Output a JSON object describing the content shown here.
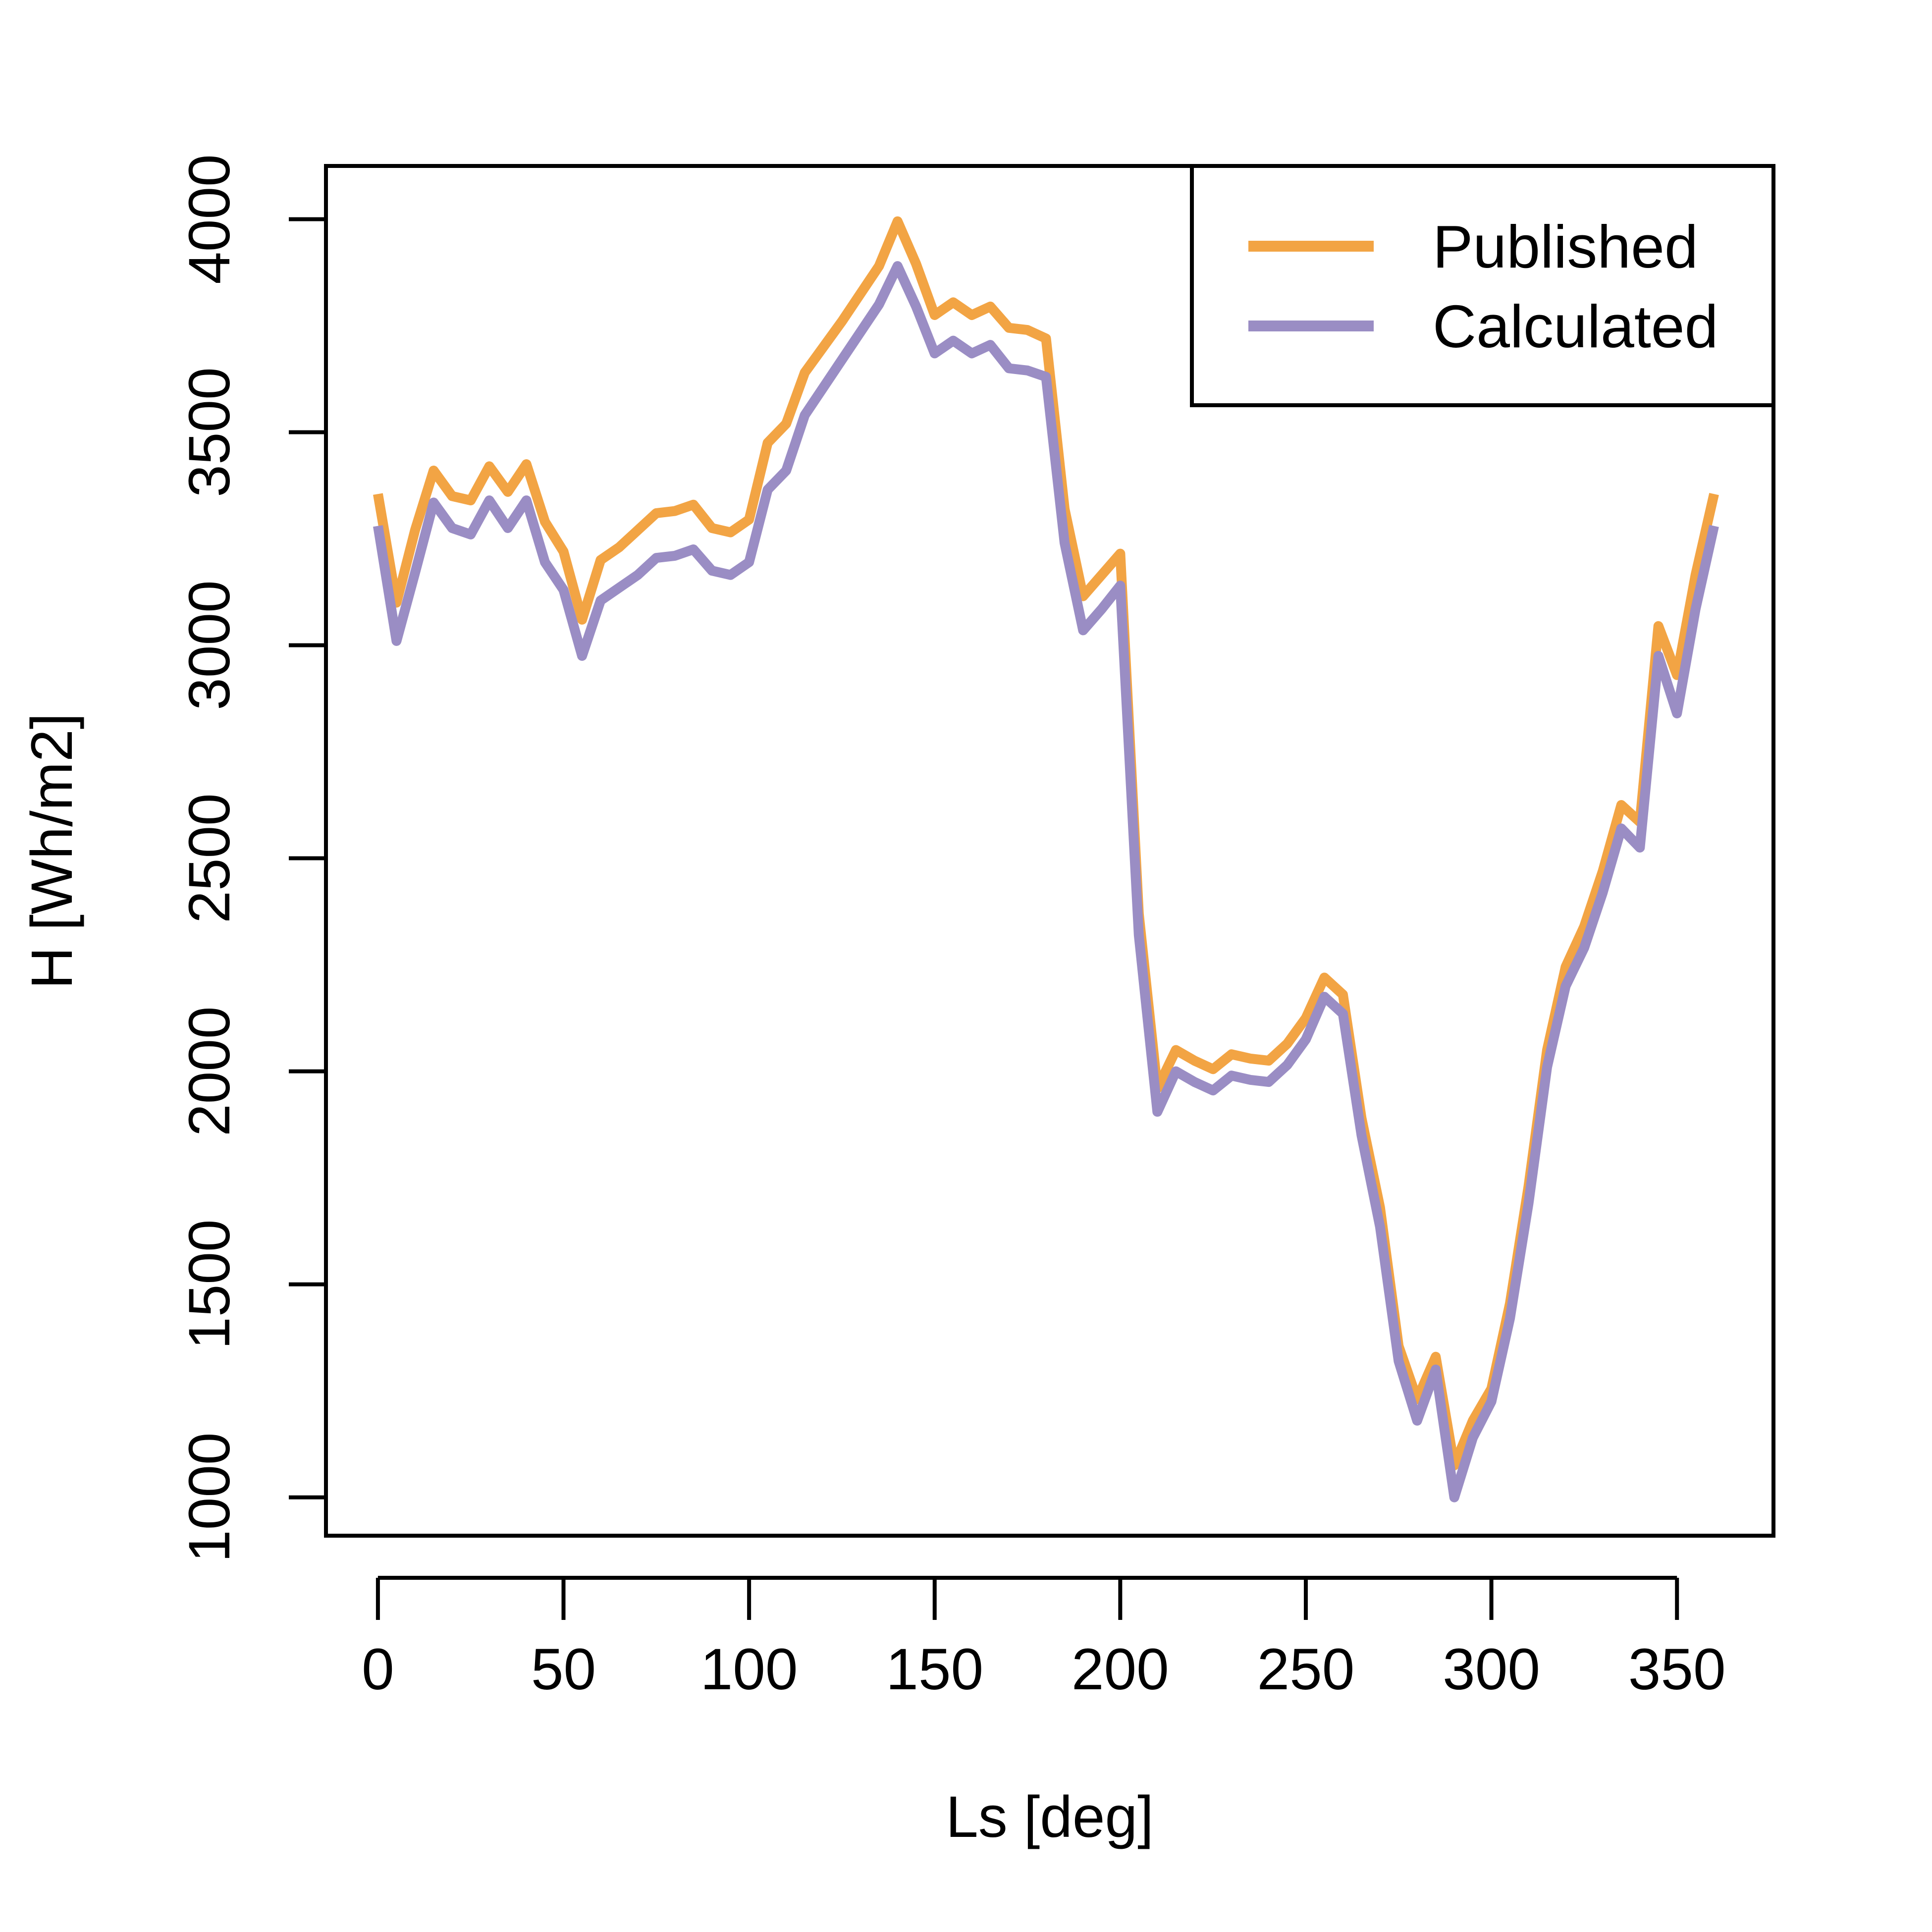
{
  "chart_data": {
    "type": "line",
    "xlabel": "Ls [deg]",
    "ylabel": "H [Wh/m2]",
    "xlim": [
      -14,
      376
    ],
    "ylim": [
      910,
      4125
    ],
    "xticks": [
      0,
      50,
      100,
      150,
      200,
      250,
      300,
      350
    ],
    "yticks": [
      1000,
      1500,
      2000,
      2500,
      3000,
      3500,
      4000
    ],
    "xtick_labels": [
      "0",
      "50",
      "100",
      "150",
      "200",
      "250",
      "300",
      "350"
    ],
    "ytick_labels": [
      "1000",
      "1500",
      "2000",
      "2500",
      "3000",
      "3500",
      "4000"
    ],
    "grid": false,
    "legend_position": "top-right",
    "x": [
      0,
      5,
      10,
      15,
      20,
      25,
      30,
      35,
      40,
      45,
      50,
      55,
      60,
      65,
      70,
      75,
      80,
      85,
      90,
      95,
      100,
      105,
      110,
      115,
      120,
      125,
      130,
      135,
      140,
      145,
      150,
      155,
      160,
      165,
      170,
      175,
      180,
      185,
      190,
      195,
      200,
      205,
      210,
      215,
      220,
      225,
      230,
      235,
      240,
      245,
      250,
      255,
      260,
      265,
      270,
      275,
      280,
      285,
      290,
      295,
      300,
      305,
      310,
      315,
      320,
      325,
      330,
      335,
      340,
      345,
      350,
      355,
      360
    ],
    "series": [
      {
        "name": "Published",
        "color": "#F2A444",
        "values": [
          3355,
          3100,
          3270,
          3410,
          3350,
          3340,
          3420,
          3360,
          3425,
          3290,
          3220,
          3060,
          3200,
          3230,
          3270,
          3310,
          3315,
          3330,
          3275,
          3265,
          3295,
          3475,
          3520,
          3640,
          3700,
          3760,
          3825,
          3890,
          3995,
          3895,
          3775,
          3805,
          3775,
          3795,
          3745,
          3740,
          3720,
          3320,
          3115,
          3165,
          3215,
          2370,
          1960,
          2050,
          2025,
          2005,
          2040,
          2030,
          2025,
          2065,
          2125,
          2220,
          2180,
          1890,
          1680,
          1355,
          1230,
          1330,
          1075,
          1180,
          1255,
          1455,
          1730,
          2050,
          2245,
          2340,
          2470,
          2625,
          2585,
          3045,
          2930,
          3165,
          3355
        ]
      },
      {
        "name": "Calculated",
        "color": "#9A8DC4",
        "values": [
          3280,
          3010,
          3170,
          3335,
          3275,
          3260,
          3340,
          3275,
          3340,
          3195,
          3130,
          2975,
          3105,
          3135,
          3165,
          3205,
          3210,
          3225,
          3175,
          3165,
          3195,
          3365,
          3410,
          3540,
          3605,
          3670,
          3735,
          3800,
          3890,
          3795,
          3685,
          3715,
          3685,
          3705,
          3650,
          3645,
          3630,
          3240,
          3035,
          3085,
          3140,
          2320,
          1905,
          2000,
          1975,
          1955,
          1990,
          1980,
          1975,
          2015,
          2075,
          2175,
          2135,
          1850,
          1635,
          1320,
          1180,
          1300,
          1000,
          1140,
          1225,
          1420,
          1690,
          2010,
          2200,
          2290,
          2420,
          2570,
          2525,
          2975,
          2840,
          3085,
          3280
        ]
      }
    ]
  }
}
